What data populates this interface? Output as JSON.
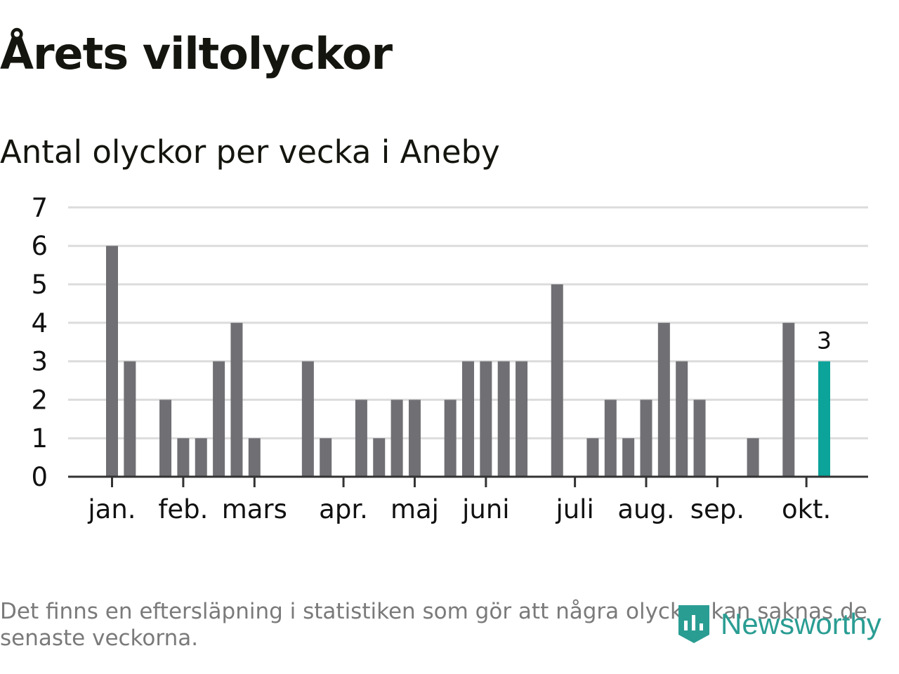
{
  "title": "Årets viltolyckor",
  "subtitle": "Antal olyckor per vecka i Aneby",
  "footnote": "Det finns en eftersläpning i statistiken som gör att några olyckor kan saknas de senaste veckorna.",
  "logo_text": "Newsworthy",
  "colors": {
    "bar": "#6f6f74",
    "highlight": "#0ba39a",
    "grid": "#dcdcdc",
    "axis": "#333333",
    "text": "#111111"
  },
  "chart_data": {
    "type": "bar",
    "title": "Antal olyckor per vecka i Aneby",
    "xlabel": "",
    "ylabel": "",
    "ylim": [
      0,
      7
    ],
    "yticks": [
      0,
      1,
      2,
      3,
      4,
      5,
      6,
      7
    ],
    "grid": true,
    "weeks": [
      1,
      2,
      3,
      4,
      5,
      6,
      7,
      8,
      9,
      10,
      11,
      12,
      13,
      14,
      15,
      16,
      17,
      18,
      19,
      20,
      21,
      22,
      23,
      24,
      25,
      26,
      27,
      28,
      29,
      30,
      31,
      32,
      33,
      34,
      35,
      36,
      37,
      38,
      39,
      40,
      41
    ],
    "values": [
      6,
      3,
      0,
      2,
      1,
      1,
      3,
      4,
      1,
      0,
      0,
      3,
      1,
      0,
      2,
      1,
      2,
      2,
      0,
      2,
      3,
      3,
      3,
      3,
      0,
      5,
      0,
      1,
      2,
      1,
      2,
      4,
      3,
      2,
      0,
      0,
      1,
      0,
      4,
      0,
      3
    ],
    "highlight_week": 41,
    "highlight_label": "3",
    "month_labels": [
      {
        "label": "jan.",
        "week": 1
      },
      {
        "label": "feb.",
        "week": 5
      },
      {
        "label": "mars",
        "week": 9
      },
      {
        "label": "apr.",
        "week": 14
      },
      {
        "label": "maj",
        "week": 18
      },
      {
        "label": "juni",
        "week": 22
      },
      {
        "label": "juli",
        "week": 27
      },
      {
        "label": "aug.",
        "week": 31
      },
      {
        "label": "sep.",
        "week": 35
      },
      {
        "label": "okt.",
        "week": 40
      }
    ]
  }
}
